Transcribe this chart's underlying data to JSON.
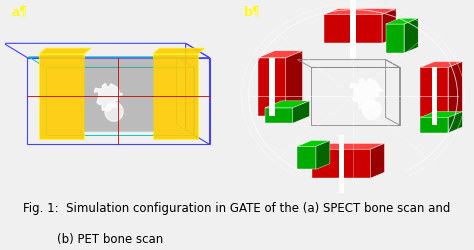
{
  "fig_width": 4.74,
  "fig_height": 2.5,
  "dpi": 100,
  "caption_line1": "Fig. 1:  Simulation configuration in GATE of the (a) SPECT bone scan and",
  "caption_line2": "(b) PET bone scan",
  "label_a": "a¶",
  "label_b": "b¶",
  "label_color": "#ffff00",
  "bg_color": "#000000",
  "image_a_bg": "#000000",
  "image_b_bg": "#000000",
  "caption_fontsize": 8.5,
  "label_fontsize": 9,
  "panel_split": 0.5
}
